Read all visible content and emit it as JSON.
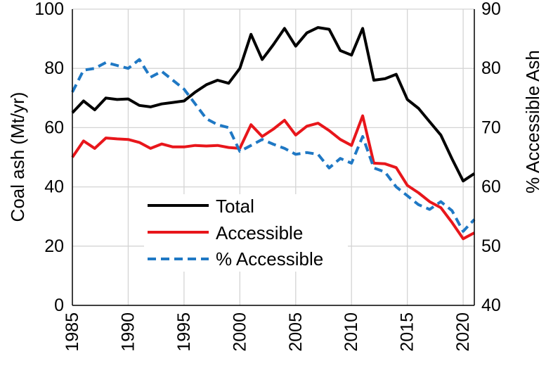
{
  "chart_data": {
    "type": "line",
    "title": "",
    "xlabel": "",
    "ylabel": "Coal ash (Mt/yr)",
    "y2label": "% Accessible Ash",
    "xlim": [
      1985,
      2021
    ],
    "ylim": [
      0,
      100
    ],
    "y2lim": [
      40,
      90
    ],
    "grid": true,
    "legend_position": "lower-center",
    "x_ticks": [
      "1985",
      "1990",
      "1995",
      "2000",
      "2005",
      "2010",
      "2015",
      "2020"
    ],
    "y_ticks": [
      "0",
      "20",
      "40",
      "60",
      "80",
      "100"
    ],
    "y2_ticks": [
      "40",
      "50",
      "60",
      "70",
      "80",
      "90"
    ],
    "x": [
      1985,
      1986,
      1987,
      1988,
      1989,
      1990,
      1991,
      1992,
      1993,
      1994,
      1995,
      1996,
      1997,
      1998,
      1999,
      2000,
      2001,
      2002,
      2003,
      2004,
      2005,
      2006,
      2007,
      2008,
      2009,
      2010,
      2011,
      2012,
      2013,
      2014,
      2015,
      2016,
      2017,
      2018,
      2019,
      2020,
      2021
    ],
    "series": [
      {
        "name": "Total",
        "axis": "left",
        "color": "#000000",
        "dash": "solid",
        "values": [
          65,
          69,
          66,
          70,
          69.5,
          69.7,
          67.5,
          67,
          68,
          68.5,
          69,
          72,
          74.5,
          76,
          75,
          80,
          91.5,
          83,
          88,
          93.5,
          87.5,
          92,
          93.8,
          93.2,
          86,
          84.5,
          93.5,
          76,
          76.5,
          78,
          69.5,
          66.5,
          62,
          57.5,
          49.5,
          42,
          44.5
        ]
      },
      {
        "name": "Accessible",
        "axis": "left",
        "color": "#e8161b",
        "dash": "solid",
        "values": [
          50,
          55.5,
          53,
          56.5,
          56.2,
          56,
          55,
          53,
          54.5,
          53.5,
          53.5,
          54,
          53.8,
          54,
          53.3,
          53,
          61,
          57,
          59.5,
          62.5,
          57.5,
          60.5,
          61.5,
          59,
          56,
          54,
          64,
          48,
          47.8,
          46.5,
          40.5,
          38,
          35,
          33,
          28,
          22.5,
          24.5
        ]
      },
      {
        "name": "% Accessible",
        "axis": "right",
        "color": "#1f78c4",
        "dash": "dashed",
        "values": [
          76,
          79.7,
          80,
          81,
          80.5,
          80,
          81.5,
          78.5,
          79.5,
          78,
          76.5,
          74,
          71.5,
          70.5,
          70,
          66,
          67,
          68,
          67.2,
          66.5,
          65.5,
          65.8,
          65.5,
          63.2,
          64.8,
          64,
          68.5,
          63.2,
          62.5,
          60,
          58.5,
          57,
          56.2,
          57.5,
          56,
          52.5,
          54.5
        ]
      }
    ]
  }
}
